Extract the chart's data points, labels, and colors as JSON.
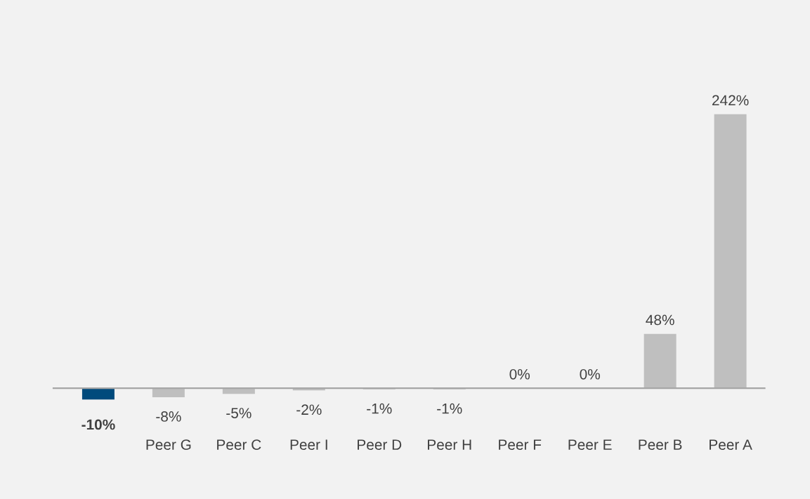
{
  "chart_data": {
    "type": "bar",
    "categories": [
      null,
      "Peer G",
      "Peer C",
      "Peer I",
      "Peer D",
      "Peer H",
      "Peer F",
      "Peer E",
      "Peer B",
      "Peer A"
    ],
    "values": [
      -10,
      -8,
      -5,
      -2,
      -1,
      -1,
      0,
      0,
      48,
      242
    ],
    "colors": [
      "#004a7c",
      "#bfbfbf",
      "#bfbfbf",
      "#bfbfbf",
      "#bfbfbf",
      "#bfbfbf",
      "#bfbfbf",
      "#bfbfbf",
      "#bfbfbf",
      "#bfbfbf"
    ],
    "value_labels": [
      "-10%",
      "-8%",
      "-5%",
      "-2%",
      "-1%",
      "-1%",
      "0%",
      "0%",
      "48%",
      "242%"
    ],
    "grid": false,
    "legend": false
  }
}
